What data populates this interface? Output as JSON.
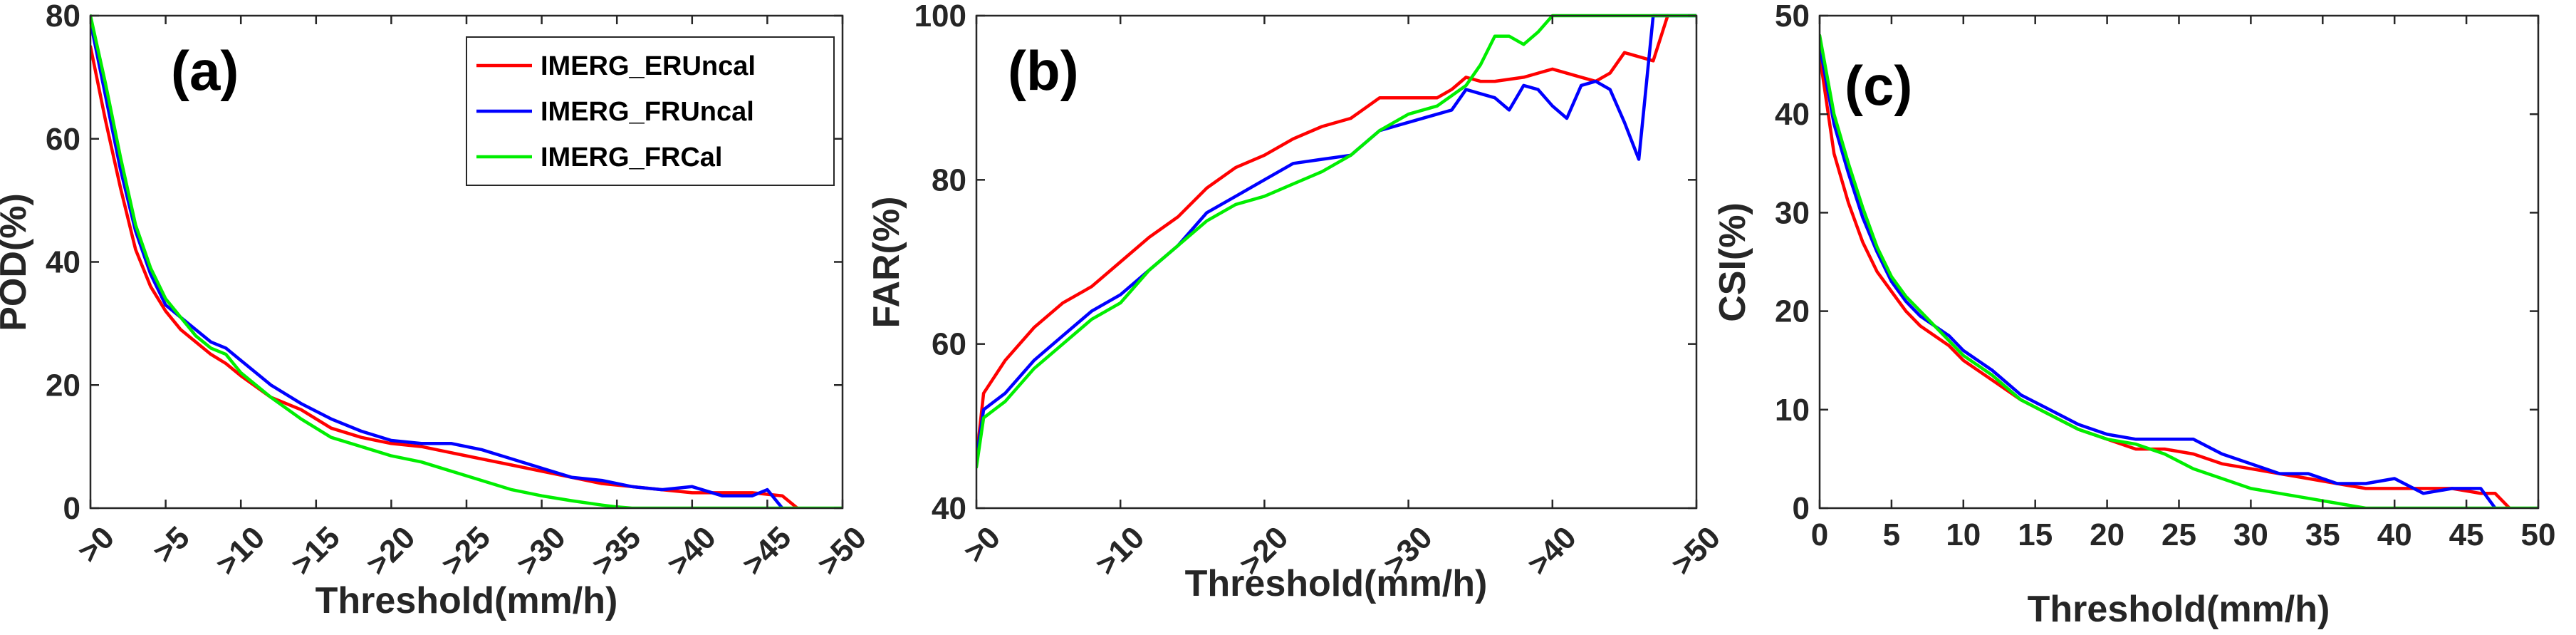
{
  "chart_data": [
    {
      "type": "line",
      "panel_label": "(a)",
      "xlabel": "Threshold(mm/h)",
      "ylabel": "POD(%)",
      "xlim": [
        0,
        50
      ],
      "ylim": [
        0,
        80
      ],
      "x_ticks": [
        0,
        5,
        10,
        15,
        20,
        25,
        30,
        35,
        40,
        45,
        50
      ],
      "x_tick_labels": [
        ">0",
        ">5",
        ">10",
        ">15",
        ">20",
        ">25",
        ">30",
        ">35",
        ">40",
        ">45",
        ">50"
      ],
      "x_tick_rotation": 45,
      "y_ticks": [
        0,
        20,
        40,
        60,
        80
      ],
      "y_tick_labels": [
        "0",
        "20",
        "40",
        "60",
        "80"
      ],
      "legend": "top-right",
      "series": [
        {
          "name": "IMERG_ERUncal",
          "color": "#ff0000",
          "x": [
            0,
            1,
            2,
            3,
            4,
            5,
            6,
            7,
            8,
            9,
            10,
            12,
            14,
            16,
            18,
            20,
            22,
            24,
            26,
            28,
            30,
            32,
            34,
            36,
            38,
            40,
            42,
            44,
            46,
            47
          ],
          "y": [
            75,
            63,
            52,
            42,
            36,
            32,
            29,
            27,
            25,
            23.5,
            21.5,
            18,
            16,
            13,
            11.5,
            10.5,
            10,
            9,
            8,
            7,
            6,
            5,
            4,
            3.5,
            3,
            2.5,
            2.5,
            2.5,
            2,
            0
          ]
        },
        {
          "name": "IMERG_FRUncal",
          "color": "#0000ff",
          "x": [
            0,
            1,
            2,
            3,
            4,
            5,
            6,
            7,
            8,
            9,
            10,
            12,
            14,
            16,
            18,
            20,
            22,
            24,
            26,
            28,
            30,
            32,
            34,
            36,
            38,
            40,
            42,
            44,
            45,
            46
          ],
          "y": [
            79,
            67,
            55,
            45,
            38,
            33,
            31,
            29,
            27,
            26,
            24,
            20,
            17,
            14.5,
            12.5,
            11,
            10.5,
            10.5,
            9.5,
            8,
            6.5,
            5,
            4.5,
            3.5,
            3,
            3.5,
            2,
            2,
            3,
            0
          ]
        },
        {
          "name": "IMERG_FRCal",
          "color": "#00ee00",
          "x": [
            0,
            1,
            2,
            3,
            4,
            5,
            6,
            7,
            8,
            9,
            10,
            12,
            14,
            16,
            18,
            20,
            22,
            24,
            26,
            28,
            30,
            32,
            34,
            35,
            36,
            50
          ],
          "y": [
            80,
            69,
            57,
            46,
            39,
            34,
            31,
            28,
            26,
            25,
            22,
            18,
            14.5,
            11.5,
            10,
            8.5,
            7.5,
            6,
            4.5,
            3,
            2,
            1.2,
            0.5,
            0.2,
            0,
            0
          ]
        }
      ]
    },
    {
      "type": "line",
      "panel_label": "(b)",
      "xlabel": "Threshold(mm/h)",
      "ylabel": "FAR(%)",
      "xlim": [
        0,
        50
      ],
      "ylim": [
        40,
        100
      ],
      "x_ticks": [
        0,
        10,
        20,
        30,
        40,
        50
      ],
      "x_tick_labels": [
        ">0",
        ">10",
        ">20",
        ">30",
        ">40",
        ">50"
      ],
      "x_tick_rotation": 45,
      "y_ticks": [
        40,
        60,
        80,
        100
      ],
      "y_tick_labels": [
        "40",
        "60",
        "80",
        "100"
      ],
      "series": [
        {
          "name": "IMERG_ERUncal",
          "color": "#ff0000",
          "x": [
            0,
            0.5,
            2,
            4,
            6,
            8,
            10,
            12,
            14,
            16,
            18,
            20,
            22,
            24,
            26,
            28,
            30,
            32,
            33,
            34,
            35,
            36,
            38,
            40,
            42,
            43,
            44,
            45,
            46,
            47,
            48
          ],
          "y": [
            46,
            54,
            58,
            62,
            65,
            67,
            70,
            73,
            75.5,
            79,
            81.5,
            83,
            85,
            86.5,
            87.5,
            90,
            90,
            90,
            91,
            92.5,
            92,
            92,
            92.5,
            93.5,
            92.5,
            92,
            93,
            95.5,
            95,
            94.5,
            100
          ]
        },
        {
          "name": "IMERG_FRUncal",
          "color": "#0000ff",
          "x": [
            0,
            0.5,
            2,
            4,
            6,
            8,
            10,
            12,
            14,
            16,
            18,
            20,
            22,
            24,
            26,
            28,
            30,
            32,
            33,
            34,
            35,
            36,
            37,
            38,
            39,
            40,
            41,
            42,
            43,
            44,
            45,
            46,
            47,
            48,
            50
          ],
          "y": [
            46,
            52,
            54,
            58,
            61,
            64,
            66,
            69,
            72,
            76,
            78,
            80,
            82,
            82.5,
            83,
            86,
            87,
            88,
            88.5,
            91,
            90.5,
            90,
            88.5,
            91.5,
            91,
            89,
            87.5,
            91.5,
            92,
            91,
            87,
            82.5,
            100,
            100,
            100
          ]
        },
        {
          "name": "IMERG_FRCal",
          "color": "#00ee00",
          "x": [
            0,
            0.5,
            2,
            4,
            6,
            8,
            10,
            12,
            14,
            16,
            18,
            20,
            22,
            24,
            26,
            28,
            30,
            32,
            34,
            35,
            36,
            37,
            38,
            39,
            40,
            50
          ],
          "y": [
            45,
            51,
            53,
            57,
            60,
            63,
            65,
            69,
            72,
            75,
            77,
            78,
            79.5,
            81,
            83,
            86,
            88,
            89,
            91.5,
            94,
            97.5,
            97.5,
            96.5,
            98,
            100,
            100
          ]
        }
      ]
    },
    {
      "type": "line",
      "panel_label": "(c)",
      "xlabel": "Threshold(mm/h)",
      "ylabel": "CSI(%)",
      "xlim": [
        0,
        50
      ],
      "ylim": [
        0,
        50
      ],
      "x_ticks": [
        0,
        5,
        10,
        15,
        20,
        25,
        30,
        35,
        40,
        45,
        50
      ],
      "x_tick_labels": [
        "0",
        "5",
        "10",
        "15",
        "20",
        "25",
        "30",
        "35",
        "40",
        "45",
        "50"
      ],
      "y_ticks": [
        0,
        10,
        20,
        30,
        40,
        50
      ],
      "y_tick_labels": [
        "0",
        "10",
        "20",
        "30",
        "40",
        "50"
      ],
      "series": [
        {
          "name": "IMERG_ERUncal",
          "color": "#ff0000",
          "x": [
            0,
            1,
            2,
            3,
            4,
            5,
            6,
            7,
            8,
            9,
            10,
            12,
            14,
            16,
            18,
            20,
            22,
            24,
            26,
            28,
            30,
            32,
            34,
            36,
            38,
            40,
            42,
            44,
            46,
            47,
            48
          ],
          "y": [
            46,
            36,
            31,
            27,
            24,
            22,
            20,
            18.5,
            17.5,
            16.5,
            15,
            13,
            11,
            9.5,
            8,
            7,
            6,
            6,
            5.5,
            4.5,
            4,
            3.5,
            3,
            2.5,
            2,
            2,
            2,
            2,
            1.5,
            1.5,
            0
          ]
        },
        {
          "name": "IMERG_FRUncal",
          "color": "#0000ff",
          "x": [
            0,
            1,
            2,
            3,
            4,
            5,
            6,
            7,
            8,
            9,
            10,
            12,
            14,
            16,
            18,
            20,
            22,
            24,
            26,
            28,
            30,
            32,
            34,
            36,
            38,
            40,
            42,
            44,
            46,
            47
          ],
          "y": [
            47,
            39,
            34,
            29.5,
            26,
            23,
            21,
            19.5,
            18.5,
            17.5,
            16,
            14,
            11.5,
            10,
            8.5,
            7.5,
            7,
            7,
            7,
            5.5,
            4.5,
            3.5,
            3.5,
            2.5,
            2.5,
            3,
            1.5,
            2,
            2,
            0
          ]
        },
        {
          "name": "IMERG_FRCal",
          "color": "#00ee00",
          "x": [
            0,
            1,
            2,
            3,
            4,
            5,
            6,
            7,
            8,
            9,
            10,
            12,
            14,
            16,
            18,
            20,
            22,
            24,
            26,
            28,
            30,
            32,
            34,
            36,
            38,
            50
          ],
          "y": [
            48,
            40,
            35,
            30.5,
            26.5,
            23.5,
            21.5,
            20,
            18.5,
            17,
            15.5,
            13.5,
            11,
            9.5,
            8,
            7,
            6.5,
            5.5,
            4,
            3,
            2,
            1.5,
            1,
            0.5,
            0,
            0
          ]
        }
      ]
    }
  ]
}
